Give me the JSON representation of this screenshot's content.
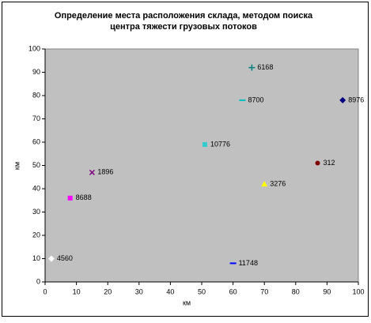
{
  "chart_data": {
    "type": "scatter",
    "title": "Определение места расположения склада, методом поиска центра тяжести грузовых потоков",
    "x_label": "км",
    "y_label": "км",
    "x": [
      66,
      63,
      95,
      51,
      87,
      15,
      70,
      8,
      2,
      60
    ],
    "y": [
      92,
      78,
      78,
      59,
      51,
      47,
      42,
      36,
      10,
      8
    ],
    "labels": [
      6168,
      8700,
      8976,
      10776,
      312,
      1896,
      3276,
      8688,
      4560,
      11748
    ],
    "colors": [
      "#008080",
      "#00c0c0",
      "#000080",
      "#33cccc",
      "#800000",
      "#800080",
      "#ffff00",
      "#ff00ff",
      "#ffffff",
      "#0000ff"
    ],
    "markers": [
      "plus",
      "dash",
      "diamond",
      "square",
      "circle",
      "cross",
      "triangle",
      "square",
      "diamond",
      "dash"
    ],
    "xlim": [
      0,
      100
    ],
    "ylim": [
      0,
      100
    ],
    "xticks": [
      0,
      10,
      20,
      30,
      40,
      50,
      60,
      70,
      80,
      90,
      100
    ],
    "yticks": [
      0,
      10,
      20,
      30,
      40,
      50,
      60,
      70,
      80,
      90,
      100
    ],
    "grid": false,
    "plot_background": "#c0c0c0"
  }
}
